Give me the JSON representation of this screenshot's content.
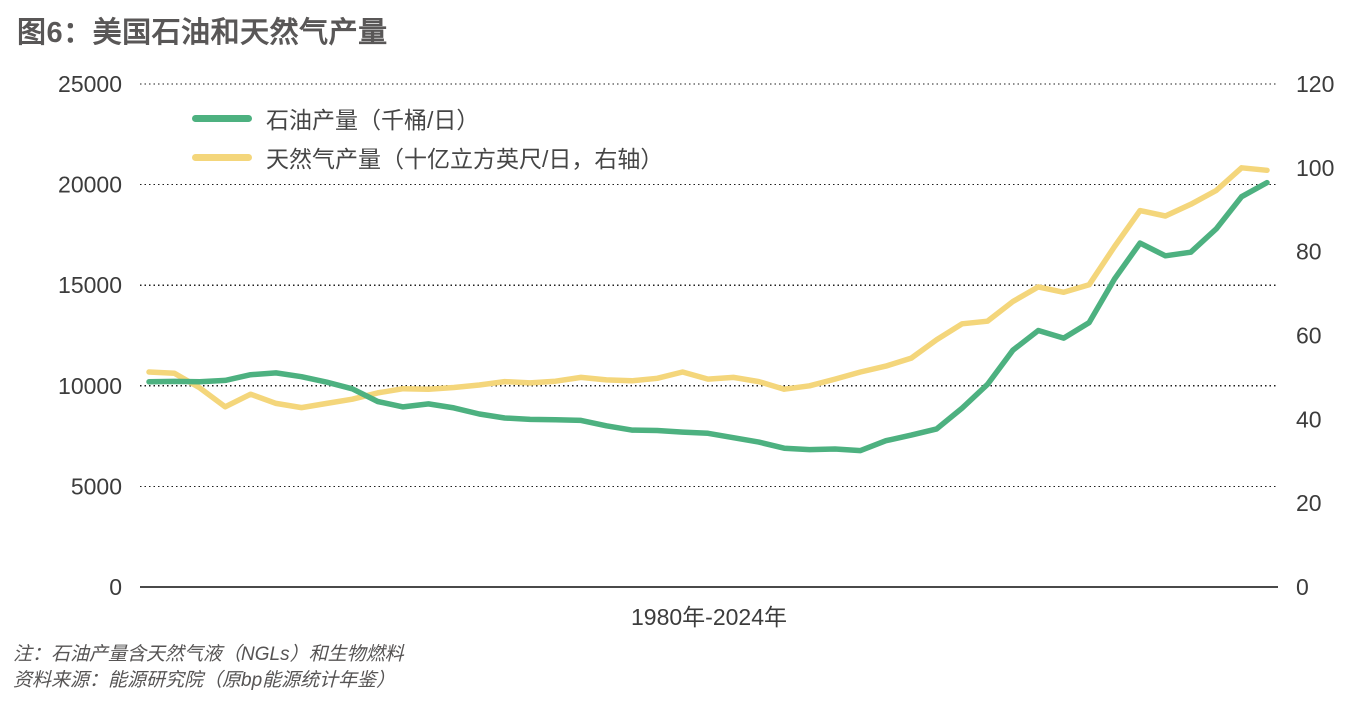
{
  "title": "图6：美国石油和天然气产量",
  "chart_data": {
    "type": "line",
    "title": "图6：美国石油和天然气产量",
    "x_label": "1980年-2024年",
    "years": [
      1980,
      1981,
      1982,
      1983,
      1984,
      1985,
      1986,
      1987,
      1988,
      1989,
      1990,
      1991,
      1992,
      1993,
      1994,
      1995,
      1996,
      1997,
      1998,
      1999,
      2000,
      2001,
      2002,
      2003,
      2004,
      2005,
      2006,
      2007,
      2008,
      2009,
      2010,
      2011,
      2012,
      2013,
      2014,
      2015,
      2016,
      2017,
      2018,
      2019,
      2020,
      2021,
      2022,
      2023,
      2024
    ],
    "series": [
      {
        "name": "石油产量（千桶/日）",
        "axis": "left",
        "unit": "千桶/日",
        "color": "#4DB180",
        "values": [
          10200,
          10220,
          10200,
          10270,
          10550,
          10640,
          10450,
          10180,
          9850,
          9220,
          8950,
          9100,
          8900,
          8600,
          8400,
          8330,
          8310,
          8280,
          8010,
          7800,
          7780,
          7700,
          7640,
          7420,
          7200,
          6900,
          6830,
          6860,
          6780,
          7270,
          7550,
          7860,
          8890,
          10070,
          11770,
          12750,
          12370,
          13140,
          15310,
          17090,
          16460,
          16640,
          17800,
          19400,
          20100
        ]
      },
      {
        "name": "天然气产量（十亿立方英尺/日，右轴）",
        "axis": "right",
        "unit": "十亿立方英尺/日",
        "color": "#F4D67B",
        "values": [
          51.3,
          51.0,
          47.5,
          43.0,
          46.0,
          43.8,
          42.8,
          43.8,
          44.8,
          46.3,
          47.3,
          47.2,
          47.6,
          48.2,
          49.0,
          48.7,
          49.1,
          50.0,
          49.4,
          49.2,
          49.8,
          51.3,
          49.6,
          50.0,
          49.0,
          47.2,
          48.0,
          49.6,
          51.3,
          52.7,
          54.6,
          59.0,
          62.8,
          63.4,
          68.1,
          71.6,
          70.3,
          72.1,
          81.2,
          89.8,
          88.5,
          91.3,
          94.6,
          100.0,
          99.4
        ]
      }
    ],
    "left_axis": {
      "min": 0,
      "max": 25000,
      "ticks": [
        0,
        5000,
        10000,
        15000,
        20000,
        25000
      ]
    },
    "right_axis": {
      "min": 0,
      "max": 120,
      "ticks": [
        0,
        20,
        40,
        60,
        80,
        100,
        120
      ]
    },
    "grid": "dotted horizontal lines at left-axis ticks",
    "legend_position": "top-left inside plot"
  },
  "notes": {
    "note": "注：石油产量含天然气液（NGLs）和生物燃料",
    "source": "资料来源：能源研究院（原bp能源统计年鉴）"
  },
  "colors": {
    "title_text": "#595757",
    "axis_text": "#3C3C3C",
    "grid_line": "#1F1F1F",
    "axis_line": "#4A4A4A",
    "background": "#FFFFFF"
  }
}
